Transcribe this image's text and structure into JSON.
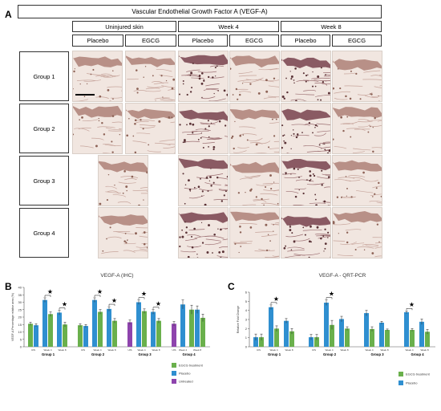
{
  "panelA": {
    "letter": "A",
    "title": "Vascular Endothelial Growth Factor A (VEGF-A)",
    "timepoints": [
      "Uninjured skin",
      "Week 4",
      "Week 8"
    ],
    "treatments": [
      "Placebo",
      "EGCG",
      "Placebo",
      "EGCG",
      "Placebo",
      "EGCG"
    ],
    "groups": [
      "Group 1",
      "Group 2",
      "Group 3",
      "Group 4"
    ]
  },
  "panelB": {
    "letter": "B"
  },
  "panelC": {
    "letter": "C"
  },
  "chart_data": [
    {
      "type": "bar",
      "title": "VEGF-A (IHC)",
      "ylabel": "VEGF-A Percentage relative area (%)",
      "ylim": [
        0,
        40
      ],
      "yticks": [
        0,
        5,
        10,
        15,
        20,
        25,
        30,
        35,
        40
      ],
      "groups": [
        {
          "name": "Group 1",
          "timepoints": [
            "UIS",
            "Week 4",
            "Week 8"
          ]
        },
        {
          "name": "Group 2",
          "timepoints": [
            "UIS",
            "Week 4",
            "Week 8"
          ]
        },
        {
          "name": "Group 3",
          "timepoints": [
            "UIS",
            "Week 4",
            "Week 8"
          ]
        },
        {
          "name": "Group 4",
          "timepoints": [
            "UIS",
            "Week 4",
            "Week 8"
          ]
        }
      ],
      "bars": [
        [
          [
            {
              "s": "EGCG",
              "v": 15.5,
              "e": 1
            },
            {
              "s": "Placebo",
              "v": 14.5,
              "e": 1
            }
          ],
          [
            {
              "s": "Placebo",
              "v": 31.5,
              "e": 1.5
            },
            {
              "s": "EGCG",
              "v": 22,
              "e": 1.5
            }
          ],
          [
            {
              "s": "Placebo",
              "v": 23,
              "e": 1.5
            },
            {
              "s": "EGCG",
              "v": 15,
              "e": 1.5
            }
          ]
        ],
        [
          [
            {
              "s": "EGCG",
              "v": 14.5,
              "e": 1
            },
            {
              "s": "Placebo",
              "v": 14,
              "e": 1
            }
          ],
          [
            {
              "s": "Placebo",
              "v": 31.5,
              "e": 1.5
            },
            {
              "s": "EGCG",
              "v": 23.5,
              "e": 1.5
            }
          ],
          [
            {
              "s": "Placebo",
              "v": 25.5,
              "e": 1.5
            },
            {
              "s": "EGCG",
              "v": 17.5,
              "e": 1.5
            }
          ]
        ],
        [
          [
            {
              "s": "Untreated",
              "v": 16.5,
              "e": 1.5
            }
          ],
          [
            {
              "s": "Placebo",
              "v": 30,
              "e": 1.5
            },
            {
              "s": "EGCG",
              "v": 24,
              "e": 1.5
            }
          ],
          [
            {
              "s": "Placebo",
              "v": 23.5,
              "e": 1.5
            },
            {
              "s": "EGCG",
              "v": 17.5,
              "e": 1.5
            }
          ]
        ],
        [
          [
            {
              "s": "Untreated",
              "v": 15.5,
              "e": 1.5
            }
          ],
          [
            {
              "s": "Placebo",
              "v": 28.5,
              "e": 3
            }
          ],
          [
            {
              "s": "EGCG",
              "v": 25,
              "e": 3
            },
            {
              "s": "Placebo",
              "v": 25,
              "e": 2.5
            },
            {
              "s": "EGCG",
              "v": 19.5,
              "e": 2.5
            }
          ]
        ]
      ],
      "series": [
        {
          "name": "EGCG treatment",
          "color": "#6ab04c"
        },
        {
          "name": "Placebo",
          "color": "#2f8fd0"
        },
        {
          "name": "Untreated",
          "color": "#8e44ad"
        }
      ],
      "significance": "★"
    },
    {
      "type": "bar",
      "title": "VEGF-A - QRT-PCR",
      "ylabel": "Relative Fold Change",
      "ylim": [
        0,
        6
      ],
      "yticks": [
        0,
        1,
        2,
        3,
        4,
        5,
        6
      ],
      "ytick_labels": [
        "0",
        "1",
        "2",
        "3",
        "4",
        "5",
        "6"
      ],
      "groups": [
        {
          "name": "Group 1",
          "timepoints": [
            "UIS",
            "Week 4",
            "Week 8"
          ]
        },
        {
          "name": "Group 2",
          "timepoints": [
            "UIS",
            "Week 4",
            "Week 8"
          ]
        },
        {
          "name": "Group 3",
          "timepoints": [
            "Week 4",
            "Week 8"
          ]
        },
        {
          "name": "Group 4",
          "timepoints": [
            "Week 4",
            "Week 8"
          ]
        }
      ],
      "bars": [
        [
          [
            {
              "s": "Placebo",
              "v": 1.05,
              "e": 0.35
            },
            {
              "s": "EGCG",
              "v": 1.05,
              "e": 0.35
            }
          ],
          [
            {
              "s": "Placebo",
              "v": 4.35,
              "e": 0.25
            },
            {
              "s": "EGCG",
              "v": 2.0,
              "e": 0.3
            }
          ],
          [
            {
              "s": "Placebo",
              "v": 2.85,
              "e": 0.25
            },
            {
              "s": "EGCG",
              "v": 1.7,
              "e": 0.3
            }
          ]
        ],
        [
          [
            {
              "s": "Placebo",
              "v": 1.05,
              "e": 0.3
            },
            {
              "s": "EGCG",
              "v": 1.05,
              "e": 0.3
            }
          ],
          [
            {
              "s": "Placebo",
              "v": 4.85,
              "e": 0.3
            },
            {
              "s": "EGCG",
              "v": 2.4,
              "e": 0.5
            }
          ],
          [
            {
              "s": "Placebo",
              "v": 3.05,
              "e": 0.3
            },
            {
              "s": "EGCG",
              "v": 2.0,
              "e": 0.2
            }
          ]
        ],
        [
          [
            {
              "s": "Placebo",
              "v": 3.7,
              "e": 0.3
            },
            {
              "s": "EGCG",
              "v": 1.95,
              "e": 0.25
            }
          ],
          [
            {
              "s": "Placebo",
              "v": 2.65,
              "e": 0.15
            },
            {
              "s": "EGCG",
              "v": 1.85,
              "e": 0.1
            }
          ]
        ],
        [
          [
            {
              "s": "Placebo",
              "v": 3.8,
              "e": 0.15
            },
            {
              "s": "EGCG",
              "v": 1.85,
              "e": 0.15
            }
          ],
          [
            {
              "s": "Placebo",
              "v": 2.75,
              "e": 0.3
            },
            {
              "s": "EGCG",
              "v": 1.65,
              "e": 0.25
            }
          ]
        ]
      ],
      "series": [
        {
          "name": "EGCG treatment",
          "color": "#6ab04c"
        },
        {
          "name": "Placebo",
          "color": "#2f8fd0"
        }
      ],
      "significance": "★"
    }
  ]
}
